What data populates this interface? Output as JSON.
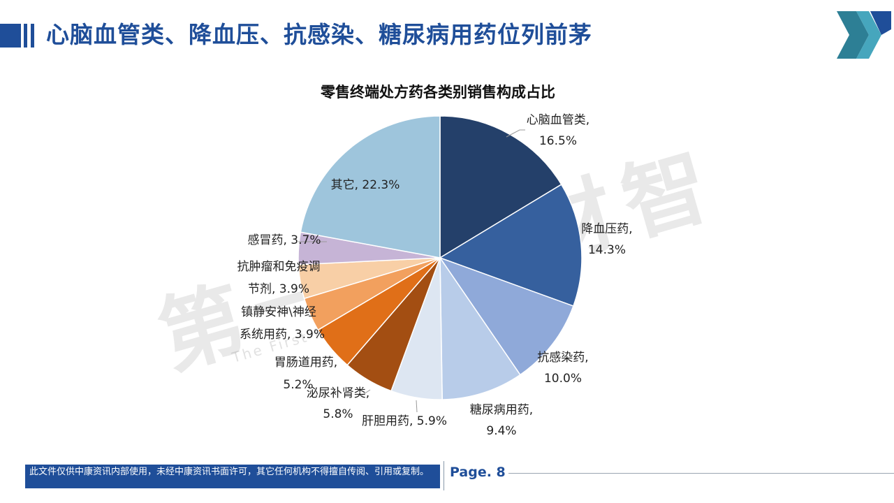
{
  "header": {
    "title": "心脑血管类、降血压、抗感染、糖尿病用药位列前茅"
  },
  "watermark": {
    "main": "第一药店财智",
    "sub": "The First Pharmacy News"
  },
  "chart_data": {
    "type": "pie",
    "title": "零售终端处方药各类别销售构成占比",
    "start_angle_deg": 0,
    "direction": "clockwise",
    "slices": [
      {
        "label": "心脑血管类",
        "value": 16.5,
        "value_label": "16.5%",
        "color": "#24406a"
      },
      {
        "label": "降血压药",
        "value": 14.3,
        "value_label": "14.3%",
        "color": "#36609e"
      },
      {
        "label": "抗感染药",
        "value": 10.0,
        "value_label": "10.0%",
        "color": "#8fa9d9"
      },
      {
        "label": "糖尿病用药",
        "value": 9.4,
        "value_label": "9.4%",
        "color": "#b8cce9"
      },
      {
        "label": "肝胆用药",
        "value": 5.9,
        "value_label": "5.9%",
        "color": "#dde6f2"
      },
      {
        "label": "泌尿补肾类",
        "value": 5.8,
        "value_label": "5.8%",
        "color": "#a34e12"
      },
      {
        "label": "胃肠道用药",
        "value": 5.2,
        "value_label": "5.2%",
        "color": "#e06f18"
      },
      {
        "label": "镇静安神\\神经系统用药",
        "value": 3.9,
        "value_label": "3.9%",
        "color": "#f2a05e"
      },
      {
        "label": "抗肿瘤和免疫调节剂",
        "value": 3.9,
        "value_label": "3.9%",
        "color": "#f8cfa6"
      },
      {
        "label": "感冒药",
        "value": 3.7,
        "value_label": "3.7%",
        "color": "#c6b4d6"
      },
      {
        "label": "其它",
        "value": 22.3,
        "value_label": "22.3%",
        "color": "#9ec5dc"
      }
    ]
  },
  "footer": {
    "notice": "此文件仅供中康资讯内部使用，未经中康资讯书面许可，其它任何机构不得擅自传阅、引用或复制。",
    "page_label": "Page. 8"
  }
}
